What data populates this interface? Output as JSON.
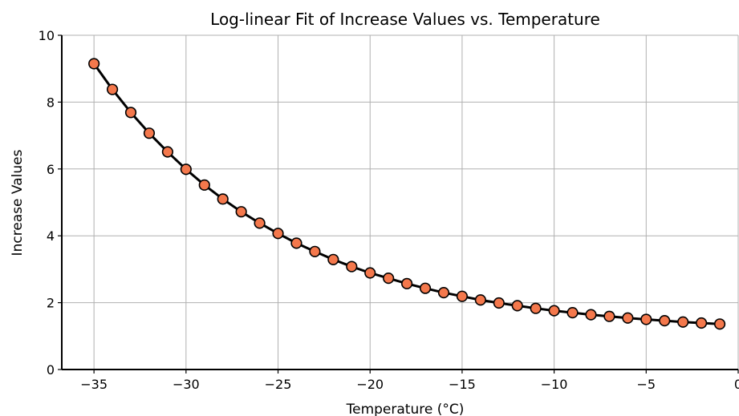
{
  "chart_data": {
    "type": "line",
    "title": "Log-linear Fit of Increase Values vs. Temperature",
    "xlabel": "Temperature (°C)",
    "ylabel": "Increase Values",
    "xlim": [
      -36.75,
      0
    ],
    "ylim": [
      0,
      10
    ],
    "x_ticks": [
      -35,
      -30,
      -25,
      -20,
      -15,
      -10,
      -5,
      0
    ],
    "x_tick_labels": [
      "−35",
      "−30",
      "−25",
      "−20",
      "−15",
      "−10",
      "−5",
      "0"
    ],
    "y_ticks": [
      0,
      2,
      4,
      6,
      8,
      10
    ],
    "y_tick_labels": [
      "0",
      "2",
      "4",
      "6",
      "8",
      "10"
    ],
    "grid": true,
    "colors": {
      "marker_fill": "#f4784c",
      "line": "#000000",
      "grid": "#b0b0b0"
    },
    "series": [
      {
        "x": [
          -35,
          -34,
          -33,
          -32,
          -31,
          -30,
          -29,
          -28,
          -27,
          -26,
          -25,
          -24,
          -23,
          -22,
          -21,
          -20,
          -19,
          -18,
          -17,
          -16,
          -15,
          -14,
          -13,
          -12,
          -11,
          -10,
          -9,
          -8,
          -7,
          -6,
          -5,
          -4,
          -3,
          -2,
          -1
        ],
        "values": [
          9.15,
          8.38,
          7.69,
          7.07,
          6.51,
          5.99,
          5.52,
          5.1,
          4.72,
          4.38,
          4.07,
          3.78,
          3.53,
          3.29,
          3.08,
          2.89,
          2.73,
          2.57,
          2.43,
          2.3,
          2.19,
          2.08,
          1.99,
          1.91,
          1.83,
          1.76,
          1.7,
          1.64,
          1.59,
          1.54,
          1.5,
          1.46,
          1.42,
          1.39,
          1.36
        ]
      }
    ]
  }
}
